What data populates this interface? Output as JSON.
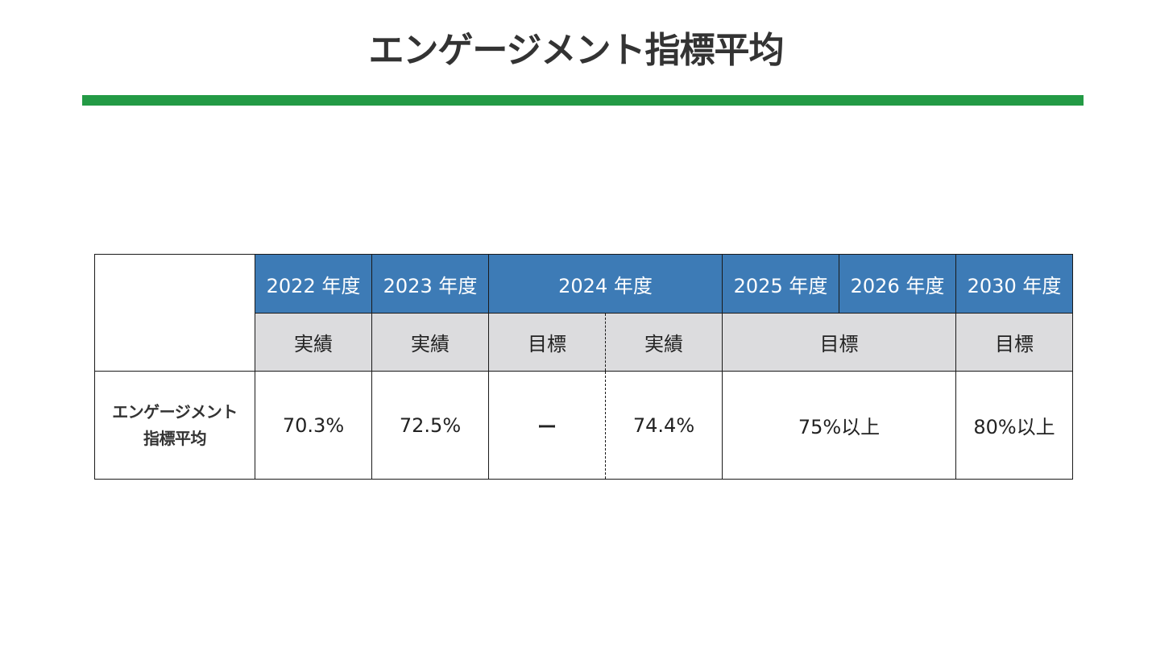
{
  "title": "エンゲージメント指標平均",
  "colors": {
    "accent_rule": "#239a45",
    "header_blue": "#3d7bb6",
    "subheader_gray": "#dcdcde"
  },
  "table": {
    "years": {
      "y2022": "2022 年度",
      "y2023": "2023 年度",
      "y2024": "2024 年度",
      "y2025": "2025 年度",
      "y2026": "2026 年度",
      "y2030": "2030 年度"
    },
    "kinds": {
      "k2022": "実績",
      "k2023": "実績",
      "k2024_target": "目標",
      "k2024_actual": "実績",
      "k2025_2026": "目標",
      "k2030": "目標"
    },
    "row_label_line1": "エンゲージメント",
    "row_label_line2": "指標平均",
    "values": {
      "v2022": "70.3%",
      "v2023": "72.5%",
      "v2024_target": "ー",
      "v2024_actual": "74.4%",
      "v2025_2026": "75%以上",
      "v2030": "80%以上"
    }
  }
}
